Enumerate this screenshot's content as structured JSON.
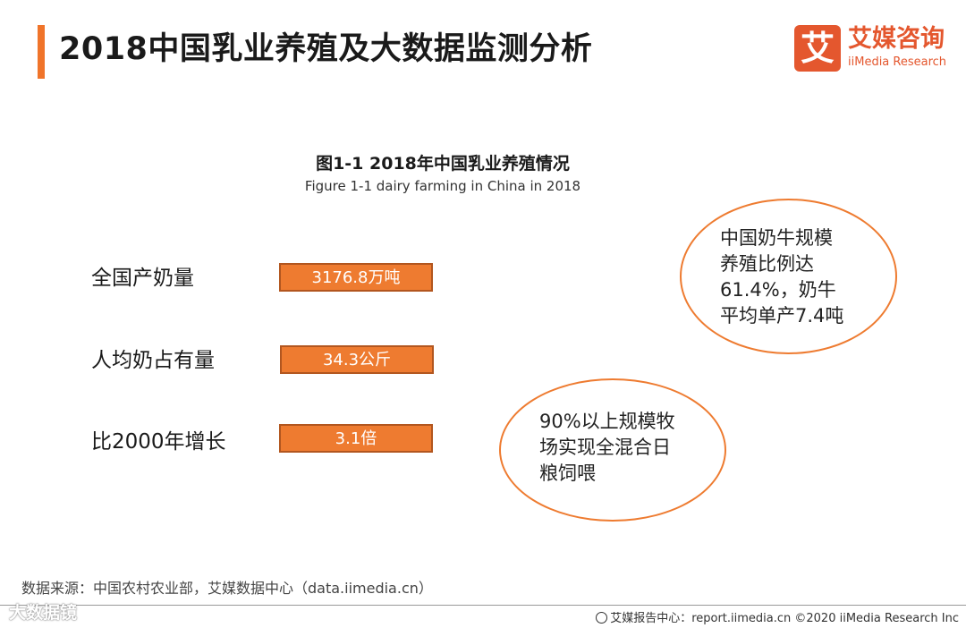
{
  "header": {
    "title": "2018中国乳业养殖及大数据监测分析",
    "accent_color": "#f0742a"
  },
  "logo": {
    "mark": "艾",
    "name_cn": "艾媒咨询",
    "name_en": "iiMedia Research",
    "brand_color": "#e4572e"
  },
  "figure": {
    "title": "图1-1 2018年中国乳业养殖情况",
    "subtitle": "Figure 1-1 dairy farming in China in 2018"
  },
  "metrics": [
    {
      "label": "全国产奶量",
      "value": "3176.8万吨"
    },
    {
      "label": "人均奶占有量",
      "value": "34.3公斤"
    },
    {
      "label": "比2000年增长",
      "value": "3.1倍"
    }
  ],
  "bubbles": [
    {
      "lines": [
        "中国奶牛规模",
        "养殖比例达",
        "61.4%，奶牛",
        "平均单产7.4吨"
      ]
    },
    {
      "lines": [
        "90%以上规模牧",
        "场实现全混合日",
        "粮饲喂"
      ]
    }
  ],
  "colors": {
    "bar_fill": "#ee7b30",
    "bar_border": "#b2561f",
    "bubble_border": "#ee7b30"
  },
  "footer": {
    "source": "数据来源：中国农村农业部，艾媒数据中心（data.iimedia.cn）",
    "report": "艾媒报告中心：report.iimedia.cn ©2020 iiMedia Research Inc",
    "globe_icon": "globe-icon",
    "watermark": "大数据镜"
  }
}
